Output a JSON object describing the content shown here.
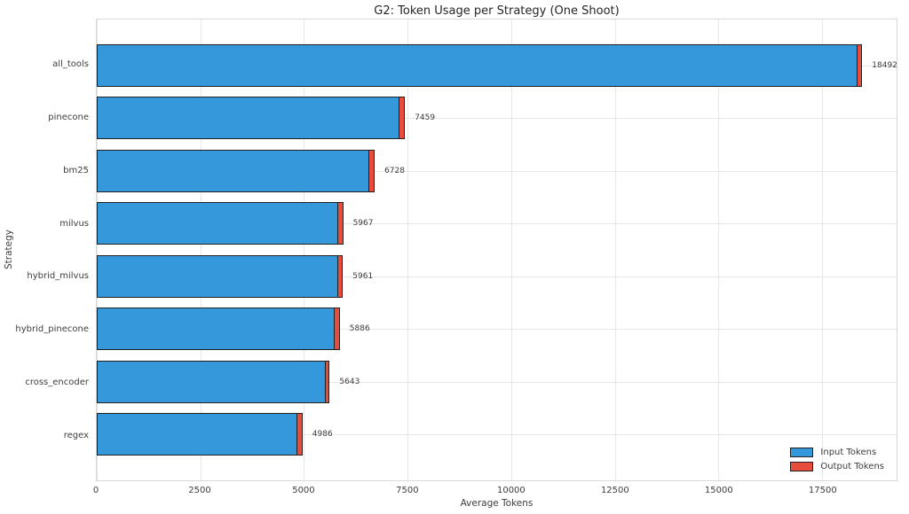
{
  "title": "G2: Token Usage per Strategy (One Shoot)",
  "colors": {
    "input_tokens": "#3498db",
    "output_tokens": "#e74c3c",
    "bar_edge": "#202020",
    "gridline": "#e6e6e6",
    "plot_border": "#d8d8d8"
  },
  "chart_data": {
    "type": "bar",
    "orientation": "horizontal",
    "stacked": true,
    "title": "G2: Token Usage per Strategy (One Shoot)",
    "xlabel": "Average Tokens",
    "ylabel": "Strategy",
    "categories": [
      "all_tools",
      "pinecone",
      "bm25",
      "milvus",
      "hybrid_milvus",
      "hybrid_pinecone",
      "cross_encoder",
      "regex"
    ],
    "series": [
      {
        "name": "Input Tokens",
        "color": "#3498db",
        "values": [
          18352,
          7314,
          6578,
          5837,
          5821,
          5751,
          5523,
          4846
        ]
      },
      {
        "name": "Output Tokens",
        "color": "#e74c3c",
        "values": [
          140,
          145,
          150,
          130,
          140,
          135,
          120,
          140
        ]
      }
    ],
    "totals": [
      18492,
      7459,
      6728,
      5967,
      5961,
      5886,
      5643,
      4986
    ],
    "total_labels": [
      "18492",
      "7459",
      "6728",
      "5967",
      "5961",
      "5886",
      "5643",
      "4986"
    ],
    "x_ticks": [
      0,
      2500,
      5000,
      7500,
      10000,
      12500,
      15000,
      17500
    ],
    "x_tick_labels": [
      "0",
      "2500",
      "5000",
      "7500",
      "10000",
      "12500",
      "15000",
      "17500"
    ],
    "xlim": [
      0,
      19300
    ],
    "grid": true,
    "legend": {
      "position": "lower right",
      "entries": [
        {
          "label": "Input Tokens",
          "color": "#3498db"
        },
        {
          "label": "Output Tokens",
          "color": "#e74c3c"
        }
      ]
    }
  }
}
